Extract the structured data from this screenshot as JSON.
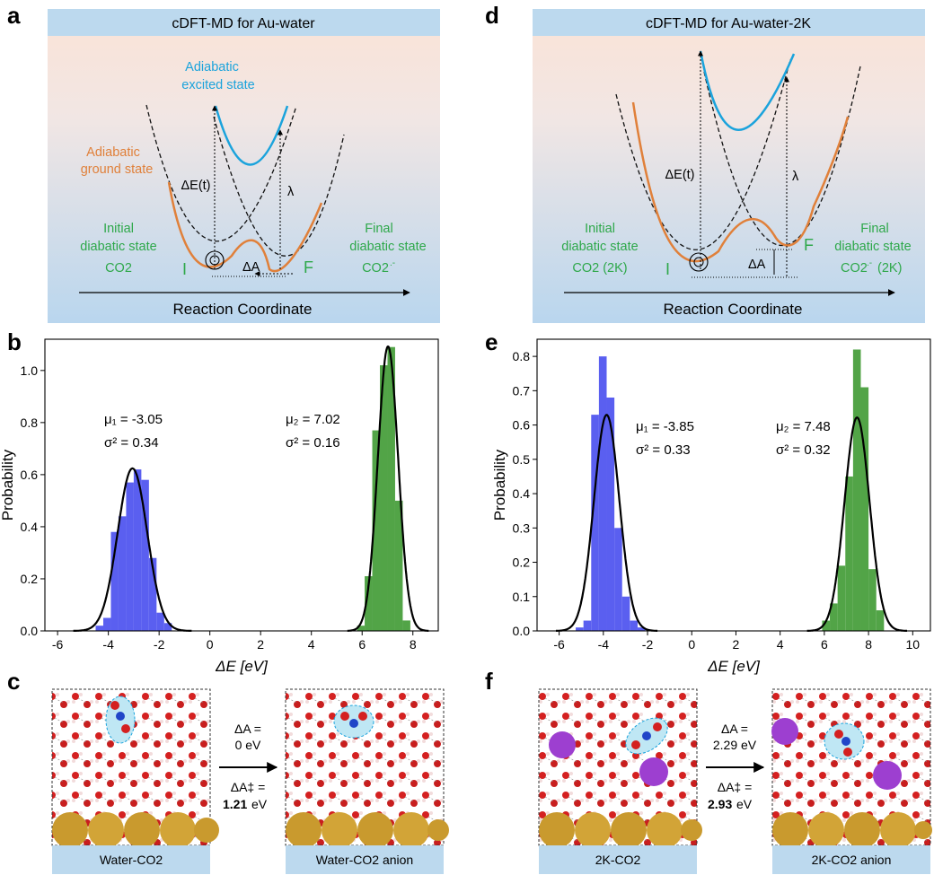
{
  "panel_labels": {
    "a": "a",
    "b": "b",
    "c": "c",
    "d": "d",
    "e": "e",
    "f": "f"
  },
  "schematic_left": {
    "title": "cDFT-MD for Au-water",
    "adiabatic_excited": [
      "Adiabatic",
      "excited state"
    ],
    "adiabatic_ground": [
      "Adiabatic",
      "ground state"
    ],
    "initial": [
      "Initial",
      "diabatic state",
      "CO2"
    ],
    "final": [
      "Final",
      "diabatic state",
      "CO2"
    ],
    "final_charge": ".-",
    "deltaE": "ΔE(t)",
    "lambda": "λ",
    "deltaA": "ΔA",
    "I": "I",
    "F": "F",
    "axis": "Reaction Coordinate"
  },
  "schematic_right": {
    "title": "cDFT-MD for Au-water-2K",
    "initial": [
      "Initial",
      "diabatic state",
      "CO2 (2K)"
    ],
    "final": [
      "Final",
      "diabatic state",
      "CO2",
      " (2K)"
    ],
    "final_charge": ".-",
    "deltaE": "ΔE(t)",
    "lambda": "λ",
    "deltaA": "ΔA",
    "I": "I",
    "F": "F",
    "axis": "Reaction Coordinate"
  },
  "colors": {
    "blue_bar": "#5a5ff0",
    "green_bar": "#52a447",
    "orange": "#e0803a",
    "cyan": "#1ba3dc",
    "green_text": "#2ea84a"
  },
  "chart_data": [
    {
      "type": "bar",
      "panel": "b",
      "xlabel": "ΔE [eV]",
      "ylabel": "Probability",
      "xlim": [
        -6.5,
        9.0
      ],
      "ylim": [
        0,
        1.12
      ],
      "xticks": [
        -6,
        -4,
        -2,
        0,
        2,
        4,
        6,
        8
      ],
      "yticks": [
        0.0,
        0.2,
        0.4,
        0.6,
        0.8,
        1.0
      ],
      "series": [
        {
          "name": "initial",
          "color": "#5a5ff0",
          "bin_width": 0.3,
          "bins": [
            -4.5,
            -4.2,
            -3.9,
            -3.6,
            -3.3,
            -3.0,
            -2.7,
            -2.4,
            -2.1,
            -1.8
          ],
          "values": [
            0.02,
            0.05,
            0.38,
            0.44,
            0.57,
            0.62,
            0.58,
            0.28,
            0.07,
            0.03
          ]
        },
        {
          "name": "final",
          "color": "#52a447",
          "bin_width": 0.3,
          "bins": [
            5.8,
            6.1,
            6.4,
            6.7,
            7.0,
            7.3,
            7.6
          ],
          "values": [
            0.02,
            0.21,
            0.77,
            1.02,
            1.09,
            0.5,
            0.04
          ]
        }
      ],
      "fits": [
        {
          "mu": -3.05,
          "sigma2": 0.34,
          "stat_lines": [
            "μ₁ = -3.05",
            "σ² = 0.34"
          ]
        },
        {
          "mu": 7.02,
          "sigma2": 0.16,
          "stat_lines": [
            "μ₂ = 7.02",
            "σ² = 0.16"
          ]
        }
      ]
    },
    {
      "type": "bar",
      "panel": "e",
      "xlabel": "ΔE [eV]",
      "ylabel": "Probability",
      "xlim": [
        -7.0,
        10.8
      ],
      "ylim": [
        0,
        0.85
      ],
      "xticks": [
        -6,
        -4,
        -2,
        0,
        2,
        4,
        6,
        8,
        10
      ],
      "yticks": [
        0.0,
        0.1,
        0.2,
        0.3,
        0.4,
        0.5,
        0.6,
        0.7,
        0.8
      ],
      "series": [
        {
          "name": "initial",
          "color": "#5a5ff0",
          "bin_width": 0.35,
          "bins": [
            -5.25,
            -4.9,
            -4.55,
            -4.2,
            -3.85,
            -3.5,
            -3.15,
            -2.8,
            -2.45
          ],
          "values": [
            0.01,
            0.03,
            0.63,
            0.8,
            0.68,
            0.3,
            0.1,
            0.03,
            0.01
          ]
        },
        {
          "name": "final",
          "color": "#52a447",
          "bin_width": 0.35,
          "bins": [
            5.9,
            6.25,
            6.6,
            6.95,
            7.3,
            7.65,
            8.0,
            8.35
          ],
          "values": [
            0.03,
            0.08,
            0.19,
            0.45,
            0.82,
            0.71,
            0.18,
            0.06
          ]
        }
      ],
      "fits": [
        {
          "mu": -3.85,
          "sigma2": 0.33,
          "stat_lines": [
            "μ₁ = -3.85",
            "σ² = 0.33"
          ]
        },
        {
          "mu": 7.48,
          "sigma2": 0.32,
          "stat_lines": [
            "μ₂ = 7.48",
            "σ² = 0.32"
          ]
        }
      ]
    }
  ],
  "snapshots_left": {
    "left_caption": "Water-CO2",
    "right_caption": "Water-CO2 anion",
    "dA_lines": [
      "ΔA =",
      "0 eV"
    ],
    "dAd_lines": [
      "ΔA‡ =",
      "1.21",
      " eV"
    ]
  },
  "snapshots_right": {
    "left_caption": "2K-CO2",
    "right_caption": "2K-CO2 anion",
    "dA_lines": [
      "ΔA =",
      "2.29 eV"
    ],
    "dAd_lines": [
      "ΔA‡ =",
      "2.93",
      " eV"
    ]
  }
}
